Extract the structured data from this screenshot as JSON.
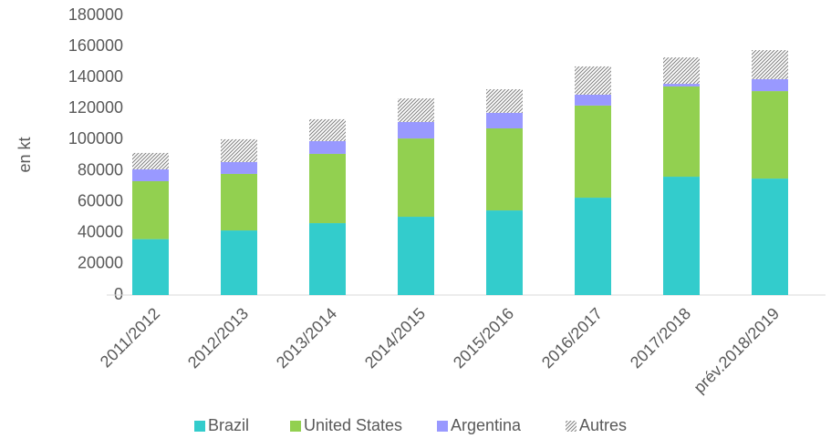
{
  "chart_data": {
    "type": "stacked_bar",
    "y_label": "en kt",
    "categories": [
      "2011/2012",
      "2012/2013",
      "2013/2014",
      "2014/2015",
      "2015/2016",
      "2016/2017",
      "2017/2018",
      "prév.2018/2019"
    ],
    "series": [
      {
        "name": "Brazil",
        "color": "#33cccc",
        "values": [
          36000,
          41600,
          46300,
          50400,
          54500,
          62700,
          76200,
          75000
        ]
      },
      {
        "name": "United States",
        "color": "#92d050",
        "values": [
          37300,
          36400,
          44600,
          50400,
          52800,
          59300,
          58100,
          56300
        ]
      },
      {
        "name": "Argentina",
        "color": "#9999ff",
        "values": [
          7600,
          7600,
          8200,
          10600,
          10000,
          7000,
          1700,
          7700
        ]
      },
      {
        "name": "Autres",
        "color": "hatch",
        "values": [
          10600,
          14700,
          14100,
          15200,
          15200,
          18200,
          17000,
          18700
        ]
      }
    ],
    "ylim": [
      0,
      180000
    ],
    "yticks": [
      0,
      20000,
      40000,
      60000,
      80000,
      100000,
      120000,
      140000,
      160000,
      180000
    ],
    "grid": false,
    "legend": "bottom"
  }
}
